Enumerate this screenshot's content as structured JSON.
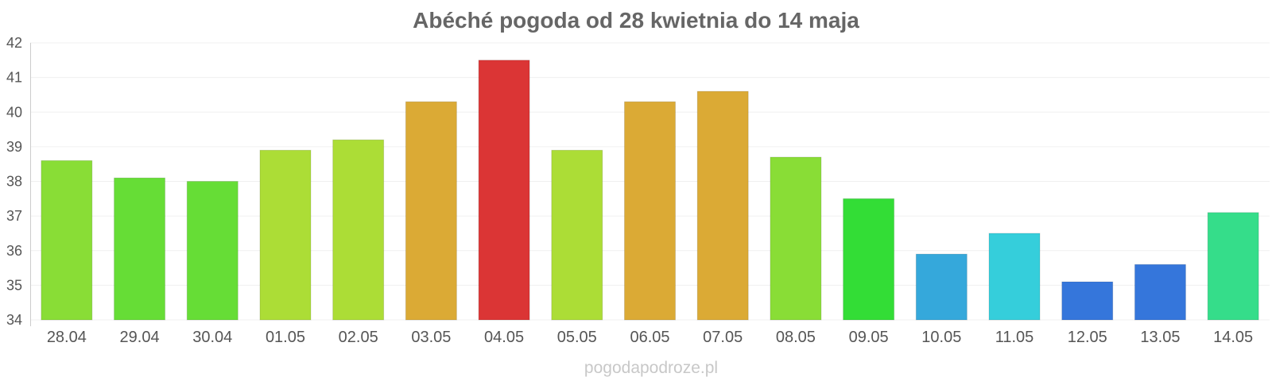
{
  "chart_data": {
    "type": "bar",
    "title": "Abéché pogoda od 28 kwietnia do 14 maja",
    "xlabel": "",
    "ylabel": "",
    "ylim": [
      34,
      42
    ],
    "yticks": [
      "34",
      "35",
      "36",
      "37",
      "38",
      "39",
      "40",
      "41",
      "42"
    ],
    "grid": true,
    "legend": "none",
    "categories": [
      "28.04",
      "29.04",
      "30.04",
      "01.05",
      "02.05",
      "03.05",
      "04.05",
      "05.05",
      "06.05",
      "07.05",
      "08.05",
      "09.05",
      "10.05",
      "11.05",
      "12.05",
      "13.05",
      "14.05"
    ],
    "values": [
      38.6,
      38.1,
      38.0,
      38.9,
      39.2,
      40.3,
      41.5,
      38.9,
      40.3,
      40.6,
      38.7,
      37.5,
      35.9,
      36.5,
      35.1,
      35.6,
      37.1
    ],
    "colors": [
      "#89dd36",
      "#66dd36",
      "#66dd36",
      "#acdd36",
      "#acdd36",
      "#dbaa35",
      "#db3535",
      "#acdd36",
      "#dbaa35",
      "#dbaa35",
      "#89dd36",
      "#33dd36",
      "#35a8db",
      "#35cedb",
      "#3576db",
      "#3576db",
      "#35dd8a"
    ]
  },
  "watermark": "pogodapodroze.pl"
}
